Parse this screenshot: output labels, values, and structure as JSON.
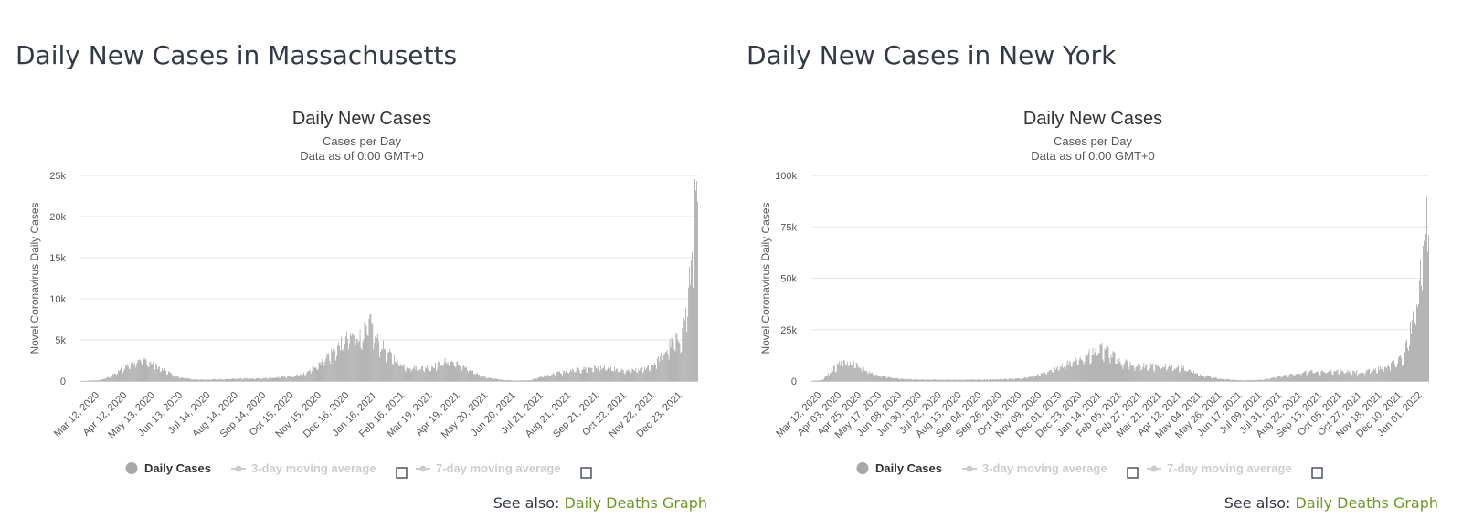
{
  "charts": [
    {
      "page_title": "Daily New Cases in Massachusetts",
      "see_also_prefix": "See also:",
      "see_also_link": "Daily Deaths Graph"
    },
    {
      "page_title": "Daily New Cases in New York",
      "see_also_prefix": "See also:",
      "see_also_link": "Daily Deaths Graph"
    }
  ],
  "colors": {
    "bar": "#a8a8a8",
    "link": "#6c9a1f",
    "title": "#333a45"
  },
  "chart_data": [
    {
      "type": "bar",
      "title": "Daily New Cases",
      "subtitle": [
        "Cases per Day",
        "Data as of 0:00 GMT+0"
      ],
      "ylabel": "Novel Coronavirus Daily Cases",
      "xlabel": "",
      "ylim": [
        0,
        25000
      ],
      "y_ticks": [
        {
          "value": 0,
          "label": "0"
        },
        {
          "value": 5000,
          "label": "5k"
        },
        {
          "value": 10000,
          "label": "10k"
        },
        {
          "value": 15000,
          "label": "15k"
        },
        {
          "value": 20000,
          "label": "20k"
        },
        {
          "value": 25000,
          "label": "25k"
        }
      ],
      "x_tick_labels": [
        "Mar 12, 2020",
        "Apr 12, 2020",
        "May 13, 2020",
        "Jun 13, 2020",
        "Jul 14, 2020",
        "Aug 14, 2020",
        "Sep 14, 2020",
        "Oct 15, 2020",
        "Nov 15, 2020",
        "Dec 16, 2020",
        "Jan 16, 2021",
        "Feb 16, 2021",
        "Mar 19, 2021",
        "Apr 19, 2021",
        "May 20, 2021",
        "Jun 20, 2021",
        "Jul 21, 2021",
        "Aug 21, 2021",
        "Sep 21, 2021",
        "Oct 22, 2021",
        "Nov 22, 2021",
        "Dec 23, 2021"
      ],
      "x_start": "2020-02-20",
      "x_end": "2022-01-09",
      "grid": true,
      "legend_placement": "bottom",
      "legend": [
        {
          "name": "Daily Cases",
          "active": true
        },
        {
          "name": "3-day moving average",
          "active": false
        },
        {
          "name": "7-day moving average",
          "active": false
        }
      ],
      "series": [
        {
          "name": "Daily Cases",
          "approx_values": [
            {
              "date": "2020-02-20",
              "value": 0
            },
            {
              "date": "2020-03-12",
              "value": 100
            },
            {
              "date": "2020-03-25",
              "value": 600
            },
            {
              "date": "2020-04-10",
              "value": 1800
            },
            {
              "date": "2020-04-24",
              "value": 2800
            },
            {
              "date": "2020-05-05",
              "value": 2400
            },
            {
              "date": "2020-05-20",
              "value": 1500
            },
            {
              "date": "2020-06-08",
              "value": 500
            },
            {
              "date": "2020-06-25",
              "value": 200
            },
            {
              "date": "2020-07-14",
              "value": 200
            },
            {
              "date": "2020-08-14",
              "value": 300
            },
            {
              "date": "2020-09-14",
              "value": 350
            },
            {
              "date": "2020-10-15",
              "value": 600
            },
            {
              "date": "2020-10-30",
              "value": 1000
            },
            {
              "date": "2020-11-15",
              "value": 2500
            },
            {
              "date": "2020-12-01",
              "value": 4000
            },
            {
              "date": "2020-12-16",
              "value": 5500
            },
            {
              "date": "2020-12-30",
              "value": 5600
            },
            {
              "date": "2021-01-08",
              "value": 7200
            },
            {
              "date": "2021-01-16",
              "value": 5200
            },
            {
              "date": "2021-01-28",
              "value": 3500
            },
            {
              "date": "2021-02-16",
              "value": 1800
            },
            {
              "date": "2021-03-05",
              "value": 1600
            },
            {
              "date": "2021-03-19",
              "value": 1800
            },
            {
              "date": "2021-04-05",
              "value": 2500
            },
            {
              "date": "2021-04-19",
              "value": 2000
            },
            {
              "date": "2021-05-05",
              "value": 1000
            },
            {
              "date": "2021-05-20",
              "value": 400
            },
            {
              "date": "2021-06-05",
              "value": 150
            },
            {
              "date": "2021-06-20",
              "value": 60
            },
            {
              "date": "2021-07-05",
              "value": 100
            },
            {
              "date": "2021-07-21",
              "value": 600
            },
            {
              "date": "2021-08-05",
              "value": 1000
            },
            {
              "date": "2021-08-21",
              "value": 1300
            },
            {
              "date": "2021-09-10",
              "value": 1600
            },
            {
              "date": "2021-09-21",
              "value": 1700
            },
            {
              "date": "2021-10-10",
              "value": 1400
            },
            {
              "date": "2021-10-22",
              "value": 1200
            },
            {
              "date": "2021-11-10",
              "value": 1500
            },
            {
              "date": "2021-11-22",
              "value": 2200
            },
            {
              "date": "2021-12-01",
              "value": 3200
            },
            {
              "date": "2021-12-10",
              "value": 4500
            },
            {
              "date": "2021-12-18",
              "value": 5200
            },
            {
              "date": "2021-12-23",
              "value": 5800
            },
            {
              "date": "2021-12-28",
              "value": 9000
            },
            {
              "date": "2022-01-02",
              "value": 14000
            },
            {
              "date": "2022-01-06",
              "value": 21000
            },
            {
              "date": "2022-01-09",
              "value": 22500
            }
          ]
        }
      ]
    },
    {
      "type": "bar",
      "title": "Daily New Cases",
      "subtitle": [
        "Cases per Day",
        "Data as of 0:00 GMT+0"
      ],
      "ylabel": "Novel Coronavirus Daily Cases",
      "xlabel": "",
      "ylim": [
        0,
        100000
      ],
      "y_ticks": [
        {
          "value": 0,
          "label": "0"
        },
        {
          "value": 25000,
          "label": "25k"
        },
        {
          "value": 50000,
          "label": "50k"
        },
        {
          "value": 75000,
          "label": "75k"
        },
        {
          "value": 100000,
          "label": "100k"
        }
      ],
      "x_tick_labels": [
        "Mar 12, 2020",
        "Apr 03, 2020",
        "Apr 25, 2020",
        "May 17, 2020",
        "Jun 08, 2020",
        "Jun 30, 2020",
        "Jul 22, 2020",
        "Aug 13, 2020",
        "Sep 04, 2020",
        "Sep 26, 2020",
        "Oct 18, 2020",
        "Nov 09, 2020",
        "Dec 01, 2020",
        "Dec 23, 2020",
        "Jan 14, 2021",
        "Feb 05, 2021",
        "Feb 27, 2021",
        "Mar 21, 2021",
        "Apr 12, 2021",
        "May 04, 2021",
        "May 26, 2021",
        "Jun 17, 2021",
        "Jul 09, 2021",
        "Jul 31, 2021",
        "Aug 22, 2021",
        "Sep 13, 2021",
        "Oct 05, 2021",
        "Oct 27, 2021",
        "Nov 18, 2021",
        "Dec 10, 2021",
        "Jan 01, 2022"
      ],
      "x_start": "2020-03-01",
      "x_end": "2022-01-08",
      "grid": true,
      "legend_placement": "bottom",
      "legend": [
        {
          "name": "Daily Cases",
          "active": true
        },
        {
          "name": "3-day moving average",
          "active": false
        },
        {
          "name": "7-day moving average",
          "active": false
        }
      ],
      "series": [
        {
          "name": "Daily Cases",
          "approx_values": [
            {
              "date": "2020-03-01",
              "value": 0
            },
            {
              "date": "2020-03-12",
              "value": 500
            },
            {
              "date": "2020-03-22",
              "value": 5000
            },
            {
              "date": "2020-04-03",
              "value": 9500
            },
            {
              "date": "2020-04-14",
              "value": 9000
            },
            {
              "date": "2020-04-25",
              "value": 7000
            },
            {
              "date": "2020-05-05",
              "value": 4000
            },
            {
              "date": "2020-05-17",
              "value": 2500
            },
            {
              "date": "2020-06-08",
              "value": 1000
            },
            {
              "date": "2020-06-30",
              "value": 700
            },
            {
              "date": "2020-07-22",
              "value": 700
            },
            {
              "date": "2020-08-13",
              "value": 650
            },
            {
              "date": "2020-09-04",
              "value": 700
            },
            {
              "date": "2020-09-26",
              "value": 900
            },
            {
              "date": "2020-10-18",
              "value": 1400
            },
            {
              "date": "2020-11-09",
              "value": 3500
            },
            {
              "date": "2020-11-25",
              "value": 6000
            },
            {
              "date": "2020-12-10",
              "value": 9500
            },
            {
              "date": "2020-12-23",
              "value": 11000
            },
            {
              "date": "2021-01-05",
              "value": 15000
            },
            {
              "date": "2021-01-14",
              "value": 16000
            },
            {
              "date": "2021-01-25",
              "value": 13000
            },
            {
              "date": "2021-02-05",
              "value": 9500
            },
            {
              "date": "2021-02-27",
              "value": 7500
            },
            {
              "date": "2021-03-21",
              "value": 7500
            },
            {
              "date": "2021-04-12",
              "value": 6500
            },
            {
              "date": "2021-05-04",
              "value": 3000
            },
            {
              "date": "2021-05-26",
              "value": 1000
            },
            {
              "date": "2021-06-17",
              "value": 350
            },
            {
              "date": "2021-07-09",
              "value": 600
            },
            {
              "date": "2021-07-31",
              "value": 2500
            },
            {
              "date": "2021-08-22",
              "value": 4500
            },
            {
              "date": "2021-09-13",
              "value": 5000
            },
            {
              "date": "2021-10-05",
              "value": 4800
            },
            {
              "date": "2021-10-27",
              "value": 4200
            },
            {
              "date": "2021-11-18",
              "value": 6500
            },
            {
              "date": "2021-12-01",
              "value": 9000
            },
            {
              "date": "2021-12-10",
              "value": 11500
            },
            {
              "date": "2021-12-17",
              "value": 20000
            },
            {
              "date": "2021-12-23",
              "value": 35000
            },
            {
              "date": "2021-12-28",
              "value": 45000
            },
            {
              "date": "2022-01-01",
              "value": 60000
            },
            {
              "date": "2022-01-05",
              "value": 76000
            },
            {
              "date": "2022-01-08",
              "value": 85000
            }
          ]
        }
      ]
    }
  ]
}
